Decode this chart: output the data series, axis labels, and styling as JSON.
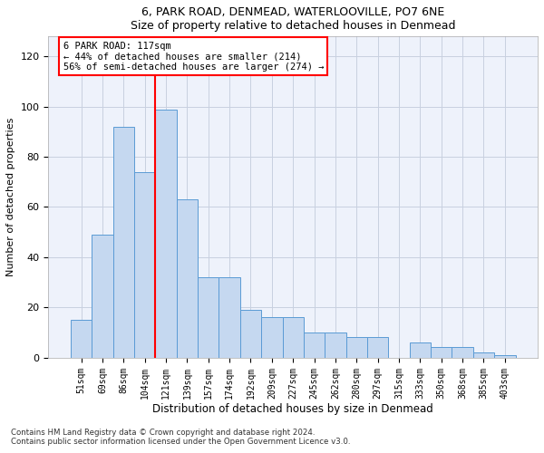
{
  "title1": "6, PARK ROAD, DENMEAD, WATERLOOVILLE, PO7 6NE",
  "title2": "Size of property relative to detached houses in Denmead",
  "xlabel": "Distribution of detached houses by size in Denmead",
  "ylabel": "Number of detached properties",
  "categories": [
    "51sqm",
    "69sqm",
    "86sqm",
    "104sqm",
    "121sqm",
    "139sqm",
    "157sqm",
    "174sqm",
    "192sqm",
    "209sqm",
    "227sqm",
    "245sqm",
    "262sqm",
    "280sqm",
    "297sqm",
    "315sqm",
    "333sqm",
    "350sqm",
    "368sqm",
    "385sqm",
    "403sqm"
  ],
  "bar_values": [
    15,
    49,
    92,
    74,
    99,
    63,
    32,
    32,
    19,
    16,
    16,
    10,
    10,
    8,
    8,
    0,
    6,
    4,
    4,
    2,
    1
  ],
  "bar_color": "#c5d8f0",
  "bar_edgecolor": "#5b9bd5",
  "vline_color": "red",
  "annotation_text": "6 PARK ROAD: 117sqm\n← 44% of detached houses are smaller (214)\n56% of semi-detached houses are larger (274) →",
  "ylim": [
    0,
    128
  ],
  "yticks": [
    0,
    20,
    40,
    60,
    80,
    100,
    120
  ],
  "background_color": "#eef2fb",
  "grid_color": "#c8d0e0",
  "footnote1": "Contains HM Land Registry data © Crown copyright and database right 2024.",
  "footnote2": "Contains public sector information licensed under the Open Government Licence v3.0."
}
